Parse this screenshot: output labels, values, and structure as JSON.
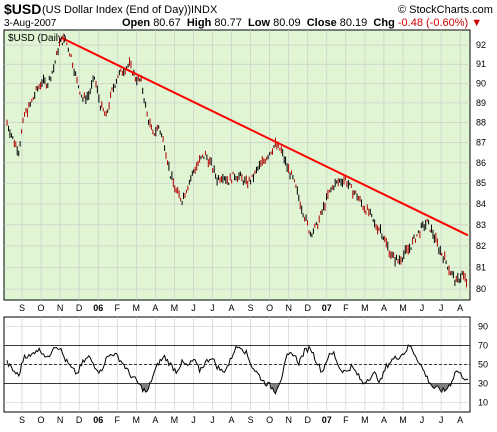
{
  "header": {
    "symbol": "$USD",
    "name": "(US Dollar Index (End of Day))",
    "exchange": "INDX",
    "credit": "© StockCharts.com",
    "date": "3-Aug-2007",
    "open_label": "Open",
    "open_value": "80.67",
    "high_label": "High",
    "high_value": "80.77",
    "low_label": "Low",
    "low_value": "80.09",
    "close_label": "Close",
    "close_value": "80.19",
    "chg_label": "Chg",
    "chg_value": "-0.48 (-0.60%)",
    "chg_arrow": "▼"
  },
  "colors": {
    "price_panel_bg": "#dff5d3",
    "rsi_panel_bg": "#ffffff",
    "grid": "#c8c8c8",
    "price_bars": "#000000",
    "trendline": "#ff0000",
    "rsi_line": "#000000",
    "rsi_fill": "#808080"
  },
  "chart_data": [
    {
      "type": "line",
      "subtype": "ohlc-bars",
      "panel_label": "$USD (Daily)",
      "x_ticks": [
        "S",
        "O",
        "N",
        "D",
        "06",
        "F",
        "M",
        "A",
        "M",
        "J",
        "J",
        "A",
        "S",
        "O",
        "N",
        "D",
        "07",
        "F",
        "M",
        "A",
        "M",
        "J",
        "J",
        "A"
      ],
      "x_ticks_bold": [
        "06",
        "07"
      ],
      "y_ticks": [
        80,
        81,
        82,
        83,
        84,
        85,
        86,
        87,
        88,
        89,
        90,
        91,
        92
      ],
      "ylim": [
        79.5,
        92.8
      ],
      "y_scale": "log",
      "grid": true,
      "series": [
        {
          "values": [
            88.0,
            87.2,
            86.6,
            88.4,
            88.9,
            89.6,
            90.1,
            90.0,
            90.8,
            92.1,
            92.3,
            91.4,
            90.1,
            89.2,
            89.4,
            90.3,
            88.9,
            88.3,
            89.6,
            90.4,
            90.7,
            91.0,
            90.3,
            90.1,
            88.4,
            87.4,
            87.8,
            86.9,
            85.4,
            84.6,
            84.2,
            84.9,
            85.6,
            86.1,
            86.4,
            85.9,
            85.2,
            85.4,
            85.1,
            85.4,
            85.3,
            85.0,
            85.2,
            85.7,
            86.1,
            86.5,
            86.9,
            86.6,
            85.8,
            85.2,
            84.3,
            83.4,
            82.6,
            82.9,
            83.6,
            84.4,
            84.9,
            85.1,
            85.2,
            84.7,
            84.4,
            83.9,
            83.6,
            83.0,
            82.8,
            82.1,
            81.5,
            81.3,
            81.6,
            81.9,
            82.4,
            82.8,
            83.1,
            82.6,
            81.9,
            81.4,
            80.8,
            80.3,
            80.7,
            80.19
          ]
        }
      ],
      "trendline": {
        "x_start": "2005-11-22",
        "y_start": 92.4,
        "x_end": "2007-08-03",
        "y_end": 82.5
      }
    },
    {
      "type": "line",
      "panel_label": "RSI",
      "x_ticks": [
        "S",
        "O",
        "N",
        "D",
        "06",
        "F",
        "M",
        "A",
        "M",
        "J",
        "J",
        "A",
        "S",
        "O",
        "N",
        "D",
        "07",
        "F",
        "M",
        "A",
        "M",
        "J",
        "J",
        "A"
      ],
      "x_ticks_bold": [
        "06",
        "07"
      ],
      "y_ticks": [
        10,
        30,
        50,
        70,
        90
      ],
      "ylim": [
        0,
        100
      ],
      "grid": true,
      "reference_lines": [
        30,
        50,
        70
      ],
      "series": [
        {
          "values": [
            52,
            44,
            38,
            60,
            58,
            66,
            64,
            56,
            70,
            68,
            55,
            46,
            40,
            52,
            58,
            49,
            42,
            56,
            62,
            58,
            50,
            40,
            34,
            26,
            20,
            38,
            52,
            58,
            50,
            43,
            52,
            48,
            55,
            44,
            52,
            58,
            48,
            42,
            50,
            66,
            70,
            62,
            48,
            40,
            32,
            28,
            22,
            36,
            58,
            62,
            52,
            64,
            68,
            54,
            42,
            58,
            62,
            46,
            42,
            48,
            40,
            30,
            36,
            40,
            32,
            48,
            55,
            58,
            62,
            70,
            60,
            48,
            36,
            26,
            24,
            22,
            30,
            44,
            38,
            34
          ]
        }
      ]
    }
  ]
}
